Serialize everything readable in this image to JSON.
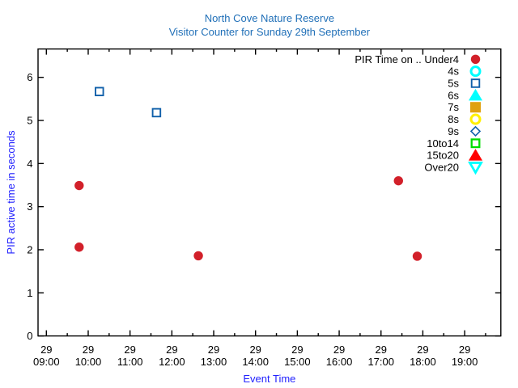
{
  "chart_data": {
    "type": "scatter",
    "title": "North Cove Nature Reserve",
    "subtitle": "Visitor Counter for Sunday 29th September",
    "xlabel": "Event Time",
    "ylabel": "PIR active time in seconds",
    "x_tick_day": "29",
    "x_tick_times": [
      "09:00",
      "10:00",
      "11:00",
      "12:00",
      "13:00",
      "14:00",
      "15:00",
      "16:00",
      "17:00",
      "18:00",
      "19:00"
    ],
    "y_ticks": [
      0,
      1,
      2,
      3,
      4,
      5,
      6
    ],
    "ylim": [
      0,
      6.66
    ],
    "xlim_hours": [
      8.8,
      19.87
    ],
    "legend_title": "PIR Time on ..",
    "grid": false,
    "legend_position": "top-right",
    "colors": {
      "title": "#2170b8",
      "axis_label": "#2222fe",
      "tick_text": "#000000",
      "axis": "#000000"
    },
    "series": [
      {
        "name": "Under4",
        "marker": "circle-filled",
        "color": "#d2202a",
        "points": [
          {
            "time": "09:47",
            "seconds": 3.49
          },
          {
            "time": "09:47",
            "seconds": 2.06
          },
          {
            "time": "12:38",
            "seconds": 1.86
          },
          {
            "time": "17:25",
            "seconds": 3.6
          },
          {
            "time": "17:52",
            "seconds": 1.85
          }
        ]
      },
      {
        "name": "4s",
        "marker": "circle-open",
        "color": "#00ffff",
        "stroke": 3,
        "points": []
      },
      {
        "name": "5s",
        "marker": "square-open",
        "color": "#1060aa",
        "stroke": 1.9,
        "points": [
          {
            "time": "10:16",
            "seconds": 5.67
          },
          {
            "time": "11:38",
            "seconds": 5.18
          }
        ]
      },
      {
        "name": "6s",
        "marker": "triangle-up-filled",
        "color": "#00ffff",
        "points": []
      },
      {
        "name": "7s",
        "marker": "square-filled",
        "color": "#e0a211",
        "points": []
      },
      {
        "name": "8s",
        "marker": "circle-open",
        "color": "#fff000",
        "stroke": 3,
        "points": []
      },
      {
        "name": "9s",
        "marker": "diamond-open",
        "color": "#1060aa",
        "stroke": 1.6,
        "points": []
      },
      {
        "name": "10to14",
        "marker": "square-open",
        "color": "#00dd00",
        "stroke": 2.3,
        "points": []
      },
      {
        "name": "15to20",
        "marker": "triangle-up-filled",
        "color": "#ff0000",
        "points": []
      },
      {
        "name": "Over20",
        "marker": "triangle-down-open",
        "color": "#00ffff",
        "stroke": 2.8,
        "points": []
      }
    ]
  }
}
